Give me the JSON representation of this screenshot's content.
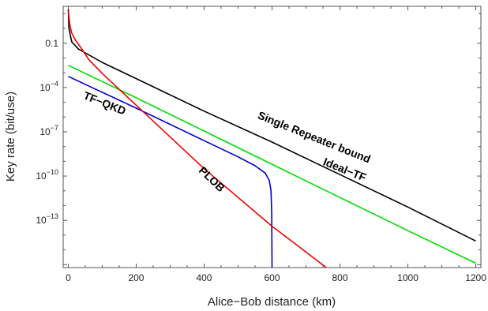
{
  "chart_data": {
    "type": "line",
    "xlabel": "Alice−Bob distance (km)",
    "ylabel": "Key rate (bit/use)",
    "xlim": [
      -15,
      1215
    ],
    "ylim_log10": [
      -16.2,
      1.5
    ],
    "y_scale": "log",
    "grid": false,
    "legend": "none",
    "x_ticks": [
      {
        "value": 0,
        "label": "0"
      },
      {
        "value": 200,
        "label": "200"
      },
      {
        "value": 400,
        "label": "400"
      },
      {
        "value": 600,
        "label": "600"
      },
      {
        "value": 800,
        "label": "800"
      },
      {
        "value": 1000,
        "label": "1000"
      },
      {
        "value": 1200,
        "label": "1200"
      }
    ],
    "y_ticks": [
      {
        "log10": -1,
        "base": "0.1",
        "exp": ""
      },
      {
        "log10": -4,
        "base": "10",
        "exp": "−4"
      },
      {
        "log10": -7,
        "base": "10",
        "exp": "−7"
      },
      {
        "log10": -10,
        "base": "10",
        "exp": "−10"
      },
      {
        "log10": -13,
        "base": "10",
        "exp": "−13"
      }
    ],
    "series": [
      {
        "name": "Single Repeater bound",
        "color": "#000000",
        "points": [
          [
            0,
            1.3
          ],
          [
            2,
            0.0
          ],
          [
            10,
            -0.9
          ],
          [
            30,
            -1.4
          ],
          [
            100,
            -2.3
          ],
          [
            200,
            -3.4
          ],
          [
            400,
            -5.6
          ],
          [
            600,
            -7.7
          ],
          [
            800,
            -9.9
          ],
          [
            1000,
            -12.1
          ],
          [
            1200,
            -14.4
          ]
        ]
      },
      {
        "name": "Ideal−TF",
        "color": "#00dd00",
        "points": [
          [
            0,
            -2.5
          ],
          [
            200,
            -4.7
          ],
          [
            400,
            -6.95
          ],
          [
            600,
            -9.2
          ],
          [
            800,
            -11.45
          ],
          [
            1000,
            -13.7
          ],
          [
            1200,
            -15.9
          ]
        ]
      },
      {
        "name": "TF−QKD",
        "color": "#0000cc",
        "points": [
          [
            0,
            -3.25
          ],
          [
            200,
            -5.4
          ],
          [
            400,
            -7.6
          ],
          [
            500,
            -8.7
          ],
          [
            550,
            -9.3
          ],
          [
            580,
            -9.8
          ],
          [
            592,
            -10.3
          ],
          [
            597,
            -11.0
          ],
          [
            599,
            -12.5
          ],
          [
            600,
            -16.2
          ]
        ]
      },
      {
        "name": "PLOB",
        "color": "#ee0000",
        "points": [
          [
            0,
            1.2
          ],
          [
            5,
            0.2
          ],
          [
            10,
            -0.3
          ],
          [
            20,
            -0.75
          ],
          [
            40,
            -1.4
          ],
          [
            60,
            -2.1
          ],
          [
            100,
            -3.05
          ],
          [
            200,
            -5.2
          ],
          [
            400,
            -9.5
          ],
          [
            600,
            -13.4
          ],
          [
            760,
            -16.2
          ]
        ]
      }
    ],
    "annotations": [
      {
        "text": "Single Repeater bound",
        "x": 720,
        "log10y": -7.6,
        "angle": 22
      },
      {
        "text": "Ideal−TF",
        "x": 810,
        "log10y": -9.8,
        "angle": 22
      },
      {
        "text": "TF−QKD",
        "x": 103,
        "log10y": -5.3,
        "angle": 22
      },
      {
        "text": "PLOB",
        "x": 415,
        "log10y": -10.4,
        "angle": 44
      }
    ]
  }
}
